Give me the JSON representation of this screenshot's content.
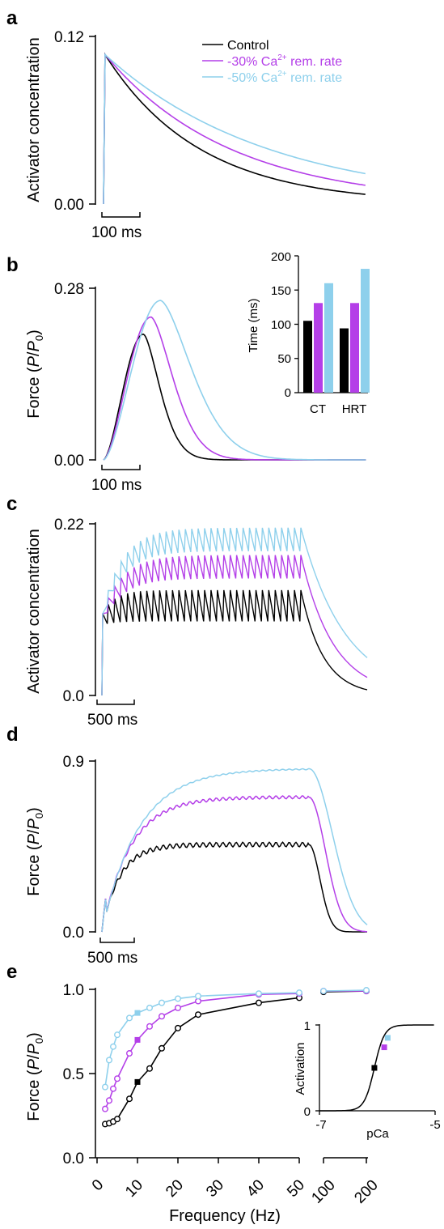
{
  "colors": {
    "control": "#000000",
    "rem30": "#B43FE8",
    "rem50": "#8ED0EC"
  },
  "legend": {
    "items": [
      {
        "key": "control",
        "text": "Control",
        "sup": "",
        "tail": ""
      },
      {
        "key": "rem30",
        "text": "-30% Ca",
        "sup": "2+",
        "tail": " rem. rate"
      },
      {
        "key": "rem50",
        "text": "-50% Ca",
        "sup": "2+",
        "tail": " rem. rate"
      }
    ]
  },
  "panels": {
    "a": {
      "letter": "a",
      "ylabel": "Activator concentration",
      "yticks": [
        "0.12",
        "0.00"
      ],
      "scalebar": "100 ms"
    },
    "b": {
      "letter": "b",
      "ylabel_pre": "Force (",
      "ylabel_P": "P",
      "ylabel_slash": "/",
      "ylabel_P0": "P",
      "ylabel_sub": "0",
      "ylabel_post": ")",
      "yticks": [
        "0.28",
        "0.00"
      ],
      "scalebar": "100 ms"
    },
    "c": {
      "letter": "c",
      "ylabel": "Activator concentration",
      "yticks": [
        "0.22",
        "0.0"
      ],
      "scalebar": "500 ms"
    },
    "d": {
      "letter": "d",
      "ylabel_pre": "Force (",
      "ylabel_P": "P",
      "ylabel_slash": "/",
      "ylabel_P0": "P",
      "ylabel_sub": "0",
      "ylabel_post": ")",
      "yticks": [
        "0.9",
        "0.0"
      ],
      "scalebar": "500 ms"
    },
    "e": {
      "letter": "e",
      "ylabel_pre": "Force (",
      "ylabel_P": "P",
      "ylabel_slash": "/",
      "ylabel_P0": "P",
      "ylabel_sub": "0",
      "ylabel_post": ")",
      "yticks": [
        "1.0",
        "0.5",
        "0.0"
      ],
      "xlabel": "Frequency (Hz)"
    }
  },
  "chart_data": [
    {
      "panel": "a",
      "type": "line",
      "title": "",
      "xlabel": "",
      "ylabel": "Activator concentration",
      "ylim": [
        0,
        0.12
      ],
      "x_unit": "ms",
      "series": [
        {
          "name": "Control",
          "peak": 0.107,
          "peak_time_ms": 4,
          "tau_ms": 250
        },
        {
          "name": "-30% Ca2+ rem. rate",
          "peak": 0.107,
          "peak_time_ms": 4,
          "tau_ms": 330
        },
        {
          "name": "-50% Ca2+ rem. rate",
          "peak": 0.107,
          "peak_time_ms": 4,
          "tau_ms": 430
        }
      ]
    },
    {
      "panel": "b",
      "type": "line",
      "title": "",
      "xlabel": "",
      "ylabel": "Force (P/P0)",
      "ylim": [
        0,
        0.28
      ],
      "x_unit": "ms",
      "series": [
        {
          "name": "Control",
          "peak": 0.205,
          "peak_time_ms": 105
        },
        {
          "name": "-30% Ca2+ rem. rate",
          "peak": 0.233,
          "peak_time_ms": 125
        },
        {
          "name": "-50% Ca2+ rem. rate",
          "peak": 0.26,
          "peak_time_ms": 150
        }
      ]
    },
    {
      "panel": "b-inset",
      "type": "bar",
      "title": "",
      "xlabel": "",
      "ylabel": "Time (ms)",
      "ylim": [
        0,
        200
      ],
      "yticks": [
        "200",
        "150",
        "100",
        "50",
        "0"
      ],
      "categories": [
        "CT",
        "HRT"
      ],
      "series": [
        {
          "name": "Control",
          "values": [
            105,
            94
          ]
        },
        {
          "name": "-30% Ca2+ rem. rate",
          "values": [
            131,
            131
          ]
        },
        {
          "name": "-50% Ca2+ rem. rate",
          "values": [
            160,
            181
          ]
        }
      ]
    },
    {
      "panel": "c",
      "type": "line",
      "title": "",
      "xlabel": "",
      "ylabel": "Activator concentration",
      "ylim": [
        0,
        0.22
      ],
      "x_unit": "ms",
      "series": [
        {
          "name": "Control",
          "trough": 0.095,
          "peak": 0.135
        },
        {
          "name": "-30% Ca2+ rem. rate",
          "trough": 0.15,
          "peak": 0.18
        },
        {
          "name": "-50% Ca2+ rem. rate",
          "trough": 0.185,
          "peak": 0.215
        }
      ]
    },
    {
      "panel": "d",
      "type": "line",
      "title": "",
      "xlabel": "",
      "ylabel": "Force (P/P0)",
      "ylim": [
        0,
        0.9
      ],
      "x_unit": "ms",
      "series": [
        {
          "name": "Control",
          "plateau": 0.46
        },
        {
          "name": "-30% Ca2+ rem. rate",
          "plateau": 0.71
        },
        {
          "name": "-50% Ca2+ rem. rate",
          "plateau": 0.86
        }
      ]
    },
    {
      "panel": "e",
      "type": "line",
      "title": "",
      "xlabel": "Frequency (Hz)",
      "ylabel": "Force (P/P0)",
      "ylim": [
        0,
        1.0
      ],
      "xticks": [
        "0",
        "10",
        "20",
        "30",
        "40",
        "50",
        "100",
        "200"
      ],
      "series": [
        {
          "name": "Control",
          "x": [
            2,
            3,
            4,
            5,
            8,
            10,
            13,
            16,
            20,
            25,
            40,
            50,
            100,
            200
          ],
          "y": [
            0.2,
            0.205,
            0.215,
            0.23,
            0.35,
            0.45,
            0.53,
            0.65,
            0.77,
            0.85,
            0.92,
            0.95,
            0.985,
            0.99
          ]
        },
        {
          "name": "-30% Ca2+ rem. rate",
          "x": [
            2,
            3,
            4,
            5,
            8,
            10,
            13,
            16,
            20,
            25,
            40,
            50,
            100,
            200
          ],
          "y": [
            0.29,
            0.34,
            0.41,
            0.47,
            0.62,
            0.7,
            0.78,
            0.84,
            0.89,
            0.93,
            0.97,
            0.975,
            0.99,
            0.99
          ]
        },
        {
          "name": "-50% Ca2+ rem. rate",
          "x": [
            2,
            3,
            4,
            5,
            8,
            10,
            13,
            16,
            20,
            25,
            40,
            50,
            100,
            200
          ],
          "y": [
            0.42,
            0.58,
            0.66,
            0.73,
            0.83,
            0.86,
            0.89,
            0.92,
            0.945,
            0.96,
            0.975,
            0.98,
            0.99,
            0.995
          ]
        }
      ],
      "filled_markers_x": 10
    },
    {
      "panel": "e-inset",
      "type": "line",
      "title": "",
      "xlabel": "pCa",
      "ylabel": "Activation",
      "xlim": [
        -7,
        -5
      ],
      "ylim": [
        0,
        1
      ],
      "xticks": [
        "-7",
        "-5"
      ],
      "yticks": [
        "1",
        "0"
      ],
      "points": [
        {
          "name": "Control",
          "x": -6.05,
          "y": 0.5
        },
        {
          "name": "-30% Ca2+ rem. rate",
          "x": -5.88,
          "y": 0.74
        },
        {
          "name": "-50% Ca2+ rem. rate",
          "x": -5.82,
          "y": 0.85
        }
      ]
    }
  ]
}
